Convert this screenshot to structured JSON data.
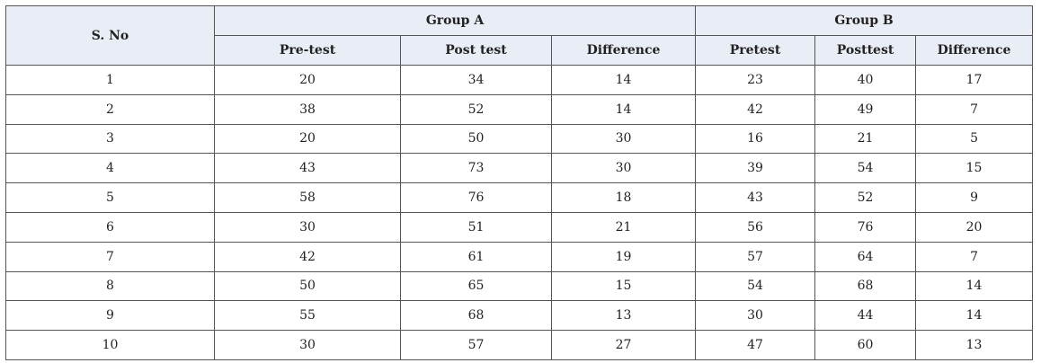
{
  "table": {
    "header": {
      "sno": "S. No",
      "groups": [
        {
          "label": "Group A",
          "columns": [
            "Pre-test",
            "Post test",
            "Difference"
          ]
        },
        {
          "label": "Group B",
          "columns": [
            "Pretest",
            "Posttest",
            "Difference"
          ]
        }
      ]
    },
    "rows": [
      [
        1,
        20,
        34,
        14,
        23,
        40,
        17
      ],
      [
        2,
        38,
        52,
        14,
        42,
        49,
        7
      ],
      [
        3,
        20,
        50,
        30,
        16,
        21,
        5
      ],
      [
        4,
        43,
        73,
        30,
        39,
        54,
        15
      ],
      [
        5,
        58,
        76,
        18,
        43,
        52,
        9
      ],
      [
        6,
        30,
        51,
        21,
        56,
        76,
        20
      ],
      [
        7,
        42,
        61,
        19,
        57,
        64,
        7
      ],
      [
        8,
        50,
        65,
        15,
        54,
        68,
        14
      ],
      [
        9,
        55,
        68,
        13,
        30,
        44,
        14
      ],
      [
        10,
        30,
        57,
        27,
        47,
        60,
        13
      ]
    ]
  }
}
